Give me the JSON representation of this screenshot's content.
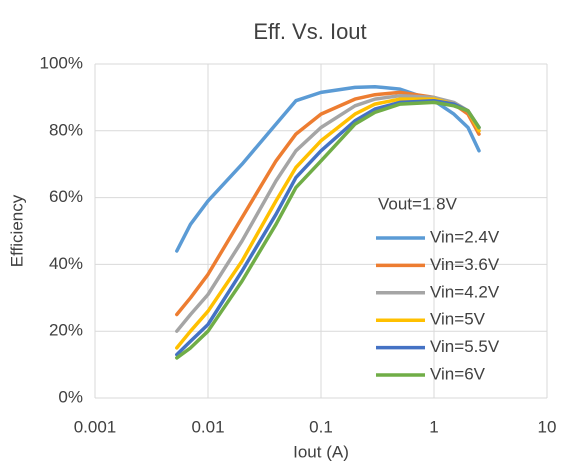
{
  "chart_data": {
    "type": "line",
    "title": "Eff. Vs. Iout",
    "x_label": "Iout (A)",
    "y_label": "Efficiency",
    "legend_title": "Vout=1.8V",
    "x_log": true,
    "grid": true,
    "legend_position": "right",
    "x": [
      0.0053,
      0.007,
      0.01,
      0.02,
      0.04,
      0.06,
      0.1,
      0.2,
      0.3,
      0.5,
      1,
      1.5,
      2,
      2.5
    ],
    "series": [
      {
        "name": "Vin=2.4V",
        "color": "#5b9bd5",
        "values": [
          44,
          52,
          59,
          70,
          82,
          89,
          91.5,
          93,
          93.2,
          92.5,
          89,
          85,
          81,
          74
        ]
      },
      {
        "name": "Vin=3.6V",
        "color": "#ed7d31",
        "values": [
          25,
          30,
          37,
          54,
          71,
          79,
          85,
          89.5,
          90.8,
          91.5,
          90,
          88,
          85,
          79
        ]
      },
      {
        "name": "Vin=4.2V",
        "color": "#a5a5a5",
        "values": [
          20,
          25,
          31,
          47,
          65,
          74,
          81,
          87.5,
          89.5,
          90.5,
          90,
          88.5,
          86,
          80
        ]
      },
      {
        "name": "Vin=5V",
        "color": "#ffc000",
        "values": [
          15,
          20,
          26,
          41,
          59,
          69,
          77,
          85,
          88,
          89.5,
          89.5,
          88,
          86,
          80
        ]
      },
      {
        "name": "Vin=5.5V",
        "color": "#4472c4",
        "values": [
          13,
          17,
          22,
          38,
          55,
          66,
          74,
          83,
          86.5,
          88.5,
          89,
          88,
          86,
          81
        ]
      },
      {
        "name": "Vin=6V",
        "color": "#70ad47",
        "values": [
          12,
          15,
          20,
          35,
          52,
          63,
          71,
          82,
          85.5,
          88,
          88.5,
          87.5,
          86,
          81
        ]
      }
    ],
    "xlim": [
      0.001,
      10
    ],
    "xticks": [
      0.001,
      0.01,
      0.1,
      1,
      10
    ],
    "ylim": [
      0,
      100
    ],
    "yticks": [
      {
        "value": 0,
        "label": "0%"
      },
      {
        "value": 20,
        "label": "20%"
      },
      {
        "value": 40,
        "label": "40%"
      },
      {
        "value": 60,
        "label": "60%"
      },
      {
        "value": 80,
        "label": "80%"
      },
      {
        "value": 100,
        "label": "100%"
      }
    ]
  }
}
